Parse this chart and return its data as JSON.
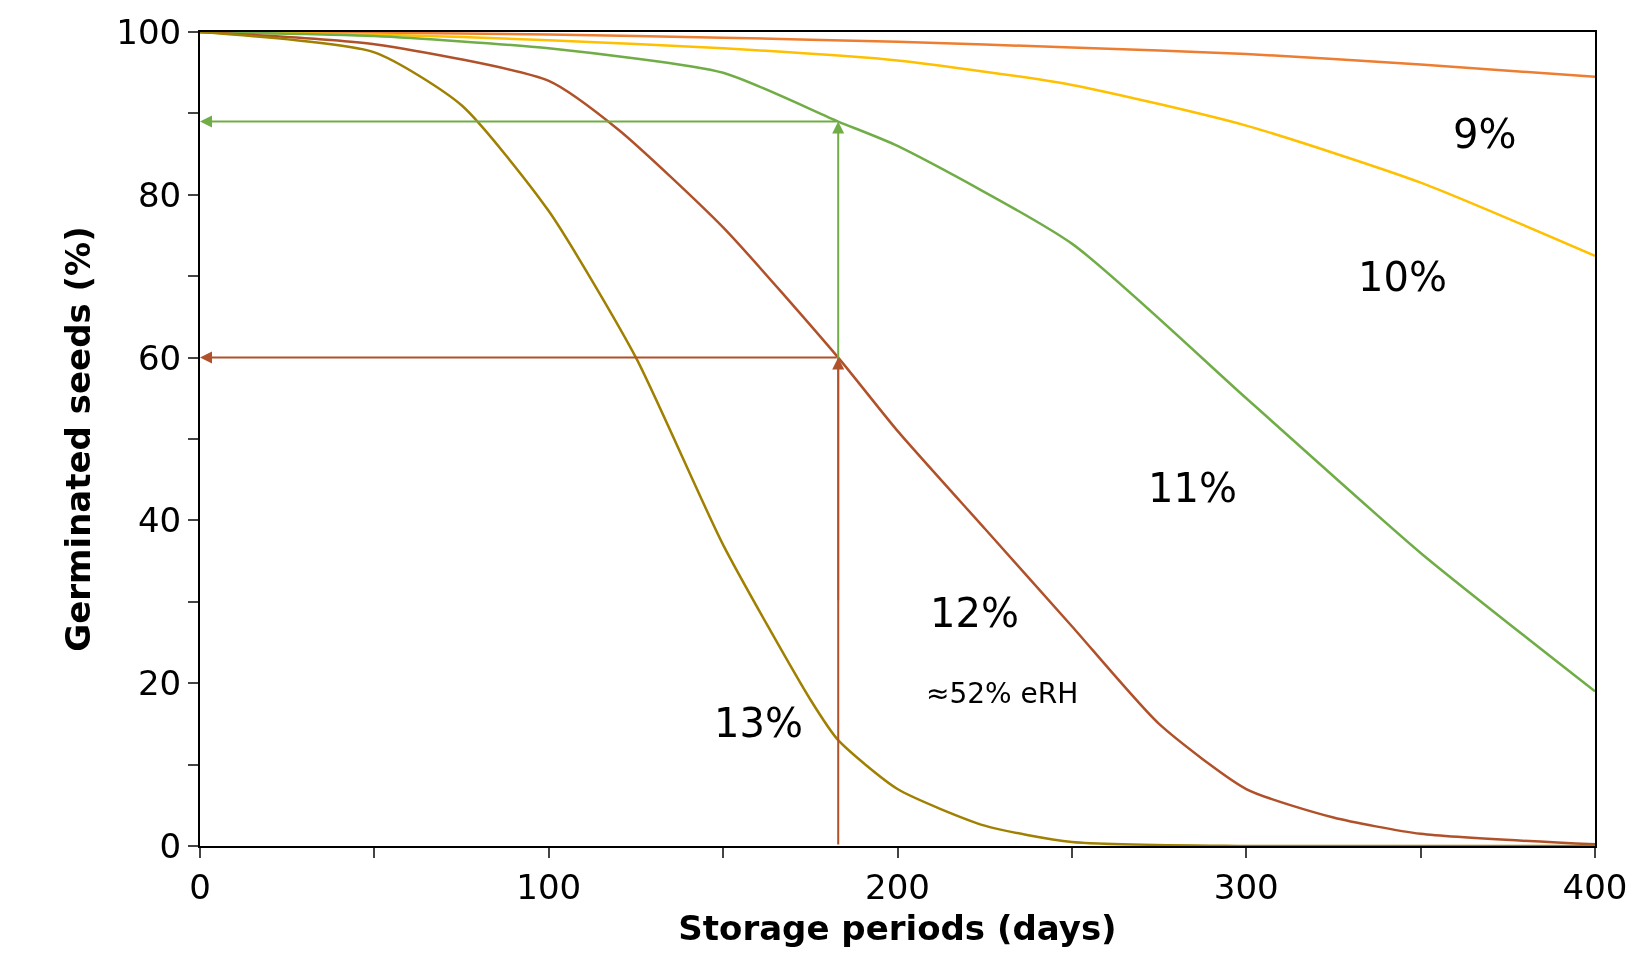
{
  "chart_data": {
    "type": "line",
    "xlabel": "Storage periods (days)",
    "ylabel": "Germinated seeds (%)",
    "xlim": [
      0,
      400
    ],
    "ylim": [
      0,
      100
    ],
    "xticks": [
      0,
      {
        "value": 50,
        "label": null
      },
      100,
      {
        "value": 150,
        "label": null
      },
      200,
      {
        "value": 250,
        "label": null
      },
      300,
      {
        "value": 350,
        "label": null
      },
      400
    ],
    "yticks": [
      0,
      {
        "value": 10,
        "label": null
      },
      20,
      {
        "value": 30,
        "label": null
      },
      40,
      {
        "value": 50,
        "label": null
      },
      60,
      {
        "value": 70,
        "label": null
      },
      80,
      {
        "value": 90,
        "label": null
      },
      100
    ],
    "legend": false,
    "marker": "none",
    "line_style": "solid",
    "series": [
      {
        "name": "9%",
        "color": "#ed7d31",
        "x": [
          0,
          50,
          100,
          150,
          200,
          250,
          300,
          350,
          400
        ],
        "values": [
          100,
          99.9,
          99.7,
          99.3,
          98.8,
          98.1,
          97.3,
          96,
          94.5
        ]
      },
      {
        "name": "10%",
        "color": "#ffc000",
        "x": [
          0,
          50,
          100,
          150,
          200,
          250,
          300,
          350,
          400
        ],
        "values": [
          100,
          99.7,
          99,
          98,
          96.5,
          93.5,
          88.5,
          81.5,
          72.5
        ]
      },
      {
        "name": "11%",
        "color": "#70ad47",
        "x": [
          0,
          50,
          100,
          150,
          183,
          200,
          250,
          300,
          350,
          400
        ],
        "values": [
          100,
          99.5,
          98,
          95,
          89,
          86,
          74,
          55,
          36,
          19
        ]
      },
      {
        "name": "12%",
        "color": "#b0512a",
        "x": [
          0,
          50,
          100,
          120,
          150,
          183,
          200,
          225,
          250,
          275,
          300,
          325,
          350,
          400
        ],
        "values": [
          100,
          98.5,
          94,
          88,
          76,
          60,
          51,
          39,
          27,
          15,
          7,
          3.5,
          1.5,
          0.2
        ]
      },
      {
        "name": "13%",
        "color": "#a08000",
        "x": [
          0,
          50,
          75,
          100,
          125,
          150,
          175,
          183,
          200,
          225,
          250,
          300,
          400
        ],
        "values": [
          100,
          97.5,
          91,
          78,
          60,
          37,
          18,
          13,
          7,
          2.5,
          0.5,
          0,
          0
        ]
      }
    ],
    "annotations": [
      "≈52% eRH"
    ]
  }
}
